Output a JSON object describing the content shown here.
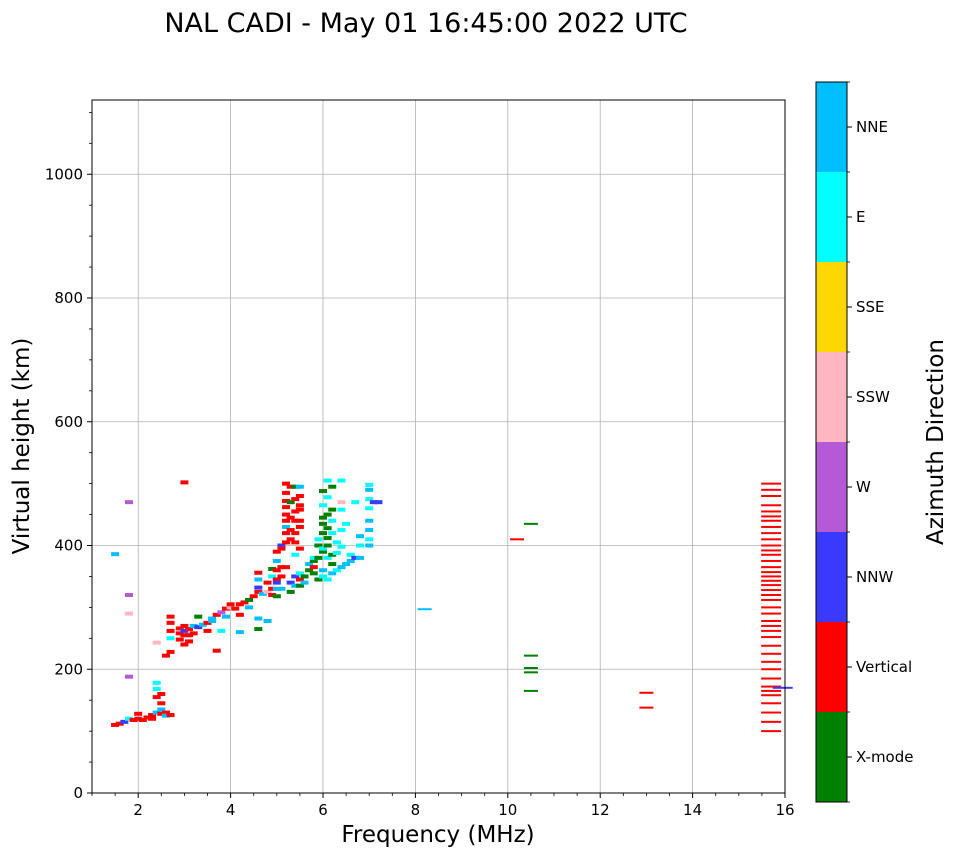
{
  "chart_data": {
    "type": "scatter",
    "title": "NAL CADI - May 01 16:45:00 2022 UTC",
    "xlabel": "Frequency (MHz)",
    "ylabel": "Virtual height (km)",
    "xlim": [
      1,
      16
    ],
    "ylim": [
      0,
      1120
    ],
    "xticks": [
      2,
      4,
      6,
      8,
      10,
      12,
      14,
      16
    ],
    "xtick_labels": [
      "2",
      "4",
      "6",
      "8",
      "10",
      "12",
      "14",
      "16"
    ],
    "yticks": [
      0,
      200,
      400,
      600,
      800,
      1000
    ],
    "ytick_labels": [
      "0",
      "200",
      "400",
      "600",
      "800",
      "1000"
    ],
    "grid": true,
    "colorbar": {
      "label": "Azimuth Direction",
      "categories": [
        "X-mode",
        "Vertical",
        "NNW",
        "W",
        "SSW",
        "SSE",
        "E",
        "NNE"
      ],
      "colors": [
        "#008000",
        "#ff0000",
        "#3a3aff",
        "#b659d6",
        "#ffb6c1",
        "#ffd700",
        "#00ffff",
        "#00bfff"
      ]
    },
    "points": [
      [
        1.5,
        386,
        7
      ],
      [
        1.5,
        110,
        1
      ],
      [
        1.6,
        112,
        1
      ],
      [
        1.7,
        115,
        2
      ],
      [
        1.8,
        470,
        3
      ],
      [
        1.8,
        320,
        3
      ],
      [
        1.8,
        290,
        4
      ],
      [
        1.8,
        188,
        3
      ],
      [
        1.8,
        120,
        6
      ],
      [
        1.9,
        118,
        1
      ],
      [
        2.0,
        120,
        1
      ],
      [
        2.0,
        128,
        1
      ],
      [
        2.1,
        118,
        1
      ],
      [
        2.2,
        122,
        1
      ],
      [
        2.3,
        120,
        1
      ],
      [
        2.3,
        126,
        1
      ],
      [
        2.4,
        130,
        7
      ],
      [
        2.4,
        155,
        1
      ],
      [
        2.4,
        168,
        6
      ],
      [
        2.4,
        178,
        6
      ],
      [
        2.4,
        243,
        4
      ],
      [
        2.5,
        128,
        1
      ],
      [
        2.5,
        135,
        7
      ],
      [
        2.5,
        145,
        1
      ],
      [
        2.5,
        160,
        1
      ],
      [
        2.6,
        130,
        1
      ],
      [
        2.6,
        125,
        7
      ],
      [
        2.6,
        222,
        1
      ],
      [
        2.7,
        126,
        1
      ],
      [
        2.7,
        228,
        1
      ],
      [
        2.7,
        250,
        6
      ],
      [
        2.7,
        262,
        1
      ],
      [
        2.7,
        275,
        1
      ],
      [
        2.7,
        285,
        1
      ],
      [
        2.9,
        248,
        1
      ],
      [
        2.9,
        258,
        1
      ],
      [
        2.9,
        266,
        1
      ],
      [
        3.0,
        502,
        1
      ],
      [
        3.0,
        240,
        1
      ],
      [
        3.0,
        262,
        2
      ],
      [
        3.0,
        270,
        1
      ],
      [
        3.0,
        255,
        1
      ],
      [
        3.1,
        255,
        1
      ],
      [
        3.1,
        245,
        1
      ],
      [
        3.1,
        265,
        1
      ],
      [
        3.2,
        258,
        1
      ],
      [
        3.2,
        270,
        7
      ],
      [
        3.3,
        268,
        2
      ],
      [
        3.3,
        285,
        0
      ],
      [
        3.4,
        272,
        7
      ],
      [
        3.5,
        275,
        1
      ],
      [
        3.5,
        262,
        1
      ],
      [
        3.6,
        278,
        7
      ],
      [
        3.6,
        282,
        7
      ],
      [
        3.7,
        288,
        1
      ],
      [
        3.7,
        230,
        1
      ],
      [
        3.8,
        292,
        3
      ],
      [
        3.8,
        262,
        6
      ],
      [
        3.9,
        298,
        1
      ],
      [
        3.9,
        285,
        7
      ],
      [
        4.0,
        300,
        4
      ],
      [
        4.0,
        305,
        1
      ],
      [
        4.1,
        298,
        1
      ],
      [
        4.2,
        305,
        1
      ],
      [
        4.2,
        288,
        1
      ],
      [
        4.2,
        260,
        7
      ],
      [
        4.3,
        308,
        1
      ],
      [
        4.4,
        312,
        0
      ],
      [
        4.4,
        300,
        7
      ],
      [
        4.5,
        318,
        1
      ],
      [
        4.6,
        325,
        1
      ],
      [
        4.6,
        332,
        2
      ],
      [
        4.6,
        345,
        7
      ],
      [
        4.6,
        356,
        1
      ],
      [
        4.6,
        265,
        0
      ],
      [
        4.6,
        282,
        7
      ],
      [
        4.7,
        322,
        7
      ],
      [
        4.8,
        340,
        1
      ],
      [
        4.8,
        325,
        4
      ],
      [
        4.8,
        278,
        7
      ],
      [
        4.9,
        330,
        1
      ],
      [
        4.9,
        350,
        6
      ],
      [
        4.9,
        362,
        0
      ],
      [
        4.9,
        320,
        1
      ],
      [
        5.0,
        345,
        1
      ],
      [
        5.0,
        360,
        1
      ],
      [
        5.0,
        375,
        7
      ],
      [
        5.0,
        390,
        1
      ],
      [
        5.0,
        318,
        0
      ],
      [
        5.0,
        330,
        7
      ],
      [
        5.0,
        340,
        2
      ],
      [
        5.1,
        350,
        1
      ],
      [
        5.1,
        365,
        1
      ],
      [
        5.1,
        400,
        2
      ],
      [
        5.1,
        395,
        1
      ],
      [
        5.1,
        330,
        7
      ],
      [
        5.2,
        365,
        1
      ],
      [
        5.2,
        420,
        1
      ],
      [
        5.2,
        430,
        7
      ],
      [
        5.2,
        440,
        1
      ],
      [
        5.2,
        450,
        1
      ],
      [
        5.2,
        462,
        1
      ],
      [
        5.2,
        472,
        1
      ],
      [
        5.2,
        485,
        1
      ],
      [
        5.2,
        500,
        1
      ],
      [
        5.2,
        405,
        1
      ],
      [
        5.3,
        340,
        2
      ],
      [
        5.3,
        410,
        1
      ],
      [
        5.3,
        425,
        1
      ],
      [
        5.3,
        445,
        1
      ],
      [
        5.3,
        495,
        1
      ],
      [
        5.3,
        470,
        0
      ],
      [
        5.3,
        325,
        0
      ],
      [
        5.4,
        350,
        2
      ],
      [
        5.4,
        385,
        6
      ],
      [
        5.4,
        405,
        1
      ],
      [
        5.4,
        420,
        1
      ],
      [
        5.4,
        440,
        1
      ],
      [
        5.4,
        455,
        1
      ],
      [
        5.4,
        475,
        1
      ],
      [
        5.4,
        495,
        0
      ],
      [
        5.4,
        335,
        7
      ],
      [
        5.5,
        345,
        1
      ],
      [
        5.5,
        355,
        6
      ],
      [
        5.5,
        395,
        1
      ],
      [
        5.5,
        430,
        1
      ],
      [
        5.5,
        440,
        1
      ],
      [
        5.5,
        458,
        1
      ],
      [
        5.5,
        465,
        1
      ],
      [
        5.5,
        480,
        1
      ],
      [
        5.5,
        495,
        7
      ],
      [
        5.5,
        335,
        0
      ],
      [
        5.6,
        350,
        0
      ],
      [
        5.6,
        340,
        7
      ],
      [
        5.7,
        360,
        0
      ],
      [
        5.7,
        370,
        7
      ],
      [
        5.8,
        375,
        0
      ],
      [
        5.8,
        365,
        1
      ],
      [
        5.8,
        380,
        6
      ],
      [
        5.8,
        355,
        0
      ],
      [
        5.9,
        400,
        0
      ],
      [
        5.9,
        410,
        6
      ],
      [
        5.9,
        345,
        0
      ],
      [
        5.9,
        380,
        0
      ],
      [
        6.0,
        390,
        0
      ],
      [
        6.0,
        395,
        6
      ],
      [
        6.0,
        360,
        7
      ],
      [
        6.0,
        350,
        6
      ],
      [
        6.0,
        420,
        0
      ],
      [
        6.0,
        435,
        0
      ],
      [
        6.0,
        445,
        0
      ],
      [
        6.0,
        465,
        6
      ],
      [
        6.0,
        488,
        0
      ],
      [
        6.1,
        345,
        6
      ],
      [
        6.1,
        380,
        6
      ],
      [
        6.1,
        400,
        0
      ],
      [
        6.1,
        412,
        0
      ],
      [
        6.1,
        428,
        0
      ],
      [
        6.1,
        450,
        0
      ],
      [
        6.1,
        505,
        6
      ],
      [
        6.1,
        478,
        6
      ],
      [
        6.2,
        355,
        7
      ],
      [
        6.2,
        370,
        0
      ],
      [
        6.2,
        385,
        0
      ],
      [
        6.2,
        420,
        6
      ],
      [
        6.2,
        440,
        6
      ],
      [
        6.2,
        458,
        0
      ],
      [
        6.2,
        495,
        0
      ],
      [
        6.3,
        360,
        6
      ],
      [
        6.3,
        388,
        6
      ],
      [
        6.3,
        405,
        6
      ],
      [
        6.4,
        365,
        7
      ],
      [
        6.4,
        398,
        6
      ],
      [
        6.4,
        425,
        6
      ],
      [
        6.4,
        458,
        6
      ],
      [
        6.4,
        470,
        4
      ],
      [
        6.4,
        505,
        6
      ],
      [
        6.5,
        370,
        7
      ],
      [
        6.5,
        435,
        6
      ],
      [
        6.6,
        375,
        7
      ],
      [
        6.6,
        385,
        6
      ],
      [
        6.7,
        380,
        2
      ],
      [
        6.7,
        470,
        6
      ],
      [
        6.8,
        400,
        6
      ],
      [
        6.8,
        415,
        7
      ],
      [
        6.8,
        380,
        7
      ],
      [
        7.0,
        400,
        7
      ],
      [
        7.0,
        410,
        6
      ],
      [
        7.0,
        425,
        7
      ],
      [
        7.0,
        440,
        7
      ],
      [
        7.0,
        460,
        6
      ],
      [
        7.0,
        475,
        6
      ],
      [
        7.0,
        490,
        7
      ],
      [
        7.0,
        498,
        6
      ],
      [
        7.1,
        470,
        2
      ],
      [
        7.2,
        470,
        2
      ],
      [
        8.2,
        297,
        7
      ],
      [
        10.2,
        410,
        1
      ],
      [
        10.5,
        435,
        0
      ],
      [
        10.5,
        222,
        0
      ],
      [
        10.5,
        202,
        0
      ],
      [
        10.5,
        195,
        0
      ],
      [
        10.5,
        165,
        0
      ],
      [
        13.0,
        162,
        1
      ],
      [
        13.0,
        138,
        1
      ],
      [
        15.7,
        500,
        1
      ],
      [
        15.7,
        490,
        1
      ],
      [
        15.7,
        480,
        1
      ],
      [
        15.7,
        465,
        1
      ],
      [
        15.7,
        455,
        1
      ],
      [
        15.7,
        447,
        1
      ],
      [
        15.7,
        440,
        1
      ],
      [
        15.7,
        430,
        1
      ],
      [
        15.7,
        420,
        1
      ],
      [
        15.7,
        410,
        1
      ],
      [
        15.7,
        400,
        1
      ],
      [
        15.7,
        392,
        1
      ],
      [
        15.7,
        385,
        1
      ],
      [
        15.7,
        375,
        1
      ],
      [
        15.7,
        365,
        1
      ],
      [
        15.7,
        357,
        1
      ],
      [
        15.7,
        350,
        1
      ],
      [
        15.7,
        343,
        1
      ],
      [
        15.7,
        336,
        1
      ],
      [
        15.7,
        328,
        1
      ],
      [
        15.7,
        320,
        1
      ],
      [
        15.7,
        312,
        1
      ],
      [
        15.7,
        300,
        1
      ],
      [
        15.7,
        290,
        1
      ],
      [
        15.7,
        278,
        1
      ],
      [
        15.7,
        270,
        1
      ],
      [
        15.7,
        262,
        1
      ],
      [
        15.7,
        252,
        1
      ],
      [
        15.7,
        238,
        1
      ],
      [
        15.7,
        225,
        1
      ],
      [
        15.7,
        212,
        1
      ],
      [
        15.7,
        200,
        1
      ],
      [
        15.7,
        185,
        1
      ],
      [
        15.7,
        172,
        1
      ],
      [
        15.7,
        165,
        1
      ],
      [
        15.7,
        158,
        1
      ],
      [
        15.7,
        145,
        1
      ],
      [
        15.7,
        130,
        1
      ],
      [
        15.7,
        115,
        1
      ],
      [
        15.7,
        100,
        1
      ],
      [
        15.95,
        170,
        2
      ]
    ]
  }
}
